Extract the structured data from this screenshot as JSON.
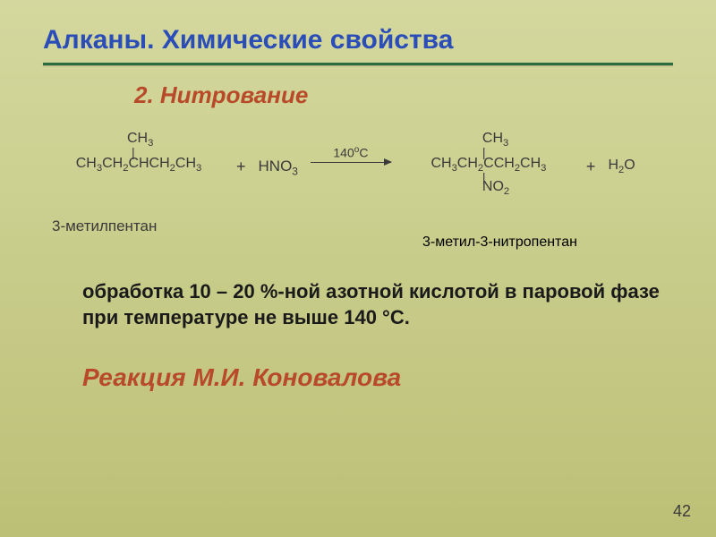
{
  "title": "Алканы. Химические свойства",
  "subtitle": "2. Нитрование",
  "reaction": {
    "reactant1_top": "CH",
    "reactant1_top_sub": "3",
    "reactant1_chain_html": "CH₃CH₂CHCH₂CH₃",
    "plus": "+",
    "reagent_html": "HNO₃",
    "arrow_temp": "140°C",
    "product1_top": "CH",
    "product1_top_sub": "3",
    "product1_chain_html": "CH₃CH₂CCH₂CH₃",
    "product1_bottom": "NO",
    "product1_bottom_sub": "2",
    "h2o_html": "H₂O"
  },
  "labels": {
    "reactant1": "3-метилпентан",
    "product1": "3-метил-3-нитропентан"
  },
  "description": "обработка 10 – 20 %-ной азотной кислотой в паровой фазе при температуре не выше 140 °С.",
  "konovalov": "Реакция М.И. Коновалова",
  "pagenum": "42",
  "colors": {
    "title": "#2a4db8",
    "underline": "#2a6b3f",
    "accent": "#b84a2a",
    "text": "#3a3a3a",
    "body_text": "#1a1a1a"
  }
}
